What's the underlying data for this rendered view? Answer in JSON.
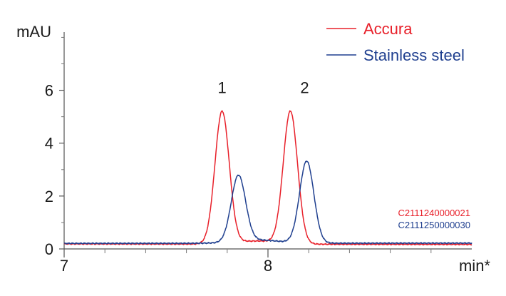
{
  "chart_data": {
    "type": "line",
    "ylabel": "mAU",
    "xlabel": "min*",
    "xlim": [
      7.0,
      9.0
    ],
    "ylim": [
      0,
      8.2
    ],
    "x_ticks": [
      {
        "value": 7.0,
        "label": "7"
      },
      {
        "value": 8.0,
        "label": "8"
      }
    ],
    "x_minor_ticks": [
      7.2,
      7.4,
      7.6,
      7.8,
      8.2,
      8.4,
      8.6,
      8.8
    ],
    "y_ticks": [
      {
        "value": 0,
        "label": "0"
      },
      {
        "value": 2,
        "label": "2"
      },
      {
        "value": 4,
        "label": "4"
      },
      {
        "value": 6,
        "label": "6"
      }
    ],
    "y_minor_ticks": [
      1,
      3,
      5,
      7,
      8
    ],
    "grid": false,
    "legend_position": "top-right",
    "series": [
      {
        "name": "Accura",
        "color": "#e8202a",
        "baseline": [
          [
            7.0,
            0.19
          ],
          [
            9.0,
            0.17
          ]
        ],
        "peaks": [
          {
            "center": 7.775,
            "height": 5.0,
            "sigma": 0.035
          },
          {
            "center": 8.11,
            "height": 5.0,
            "sigma": 0.035
          }
        ]
      },
      {
        "name": "Stainless steel",
        "color": "#1f3f8f",
        "baseline": [
          [
            7.0,
            0.21
          ],
          [
            9.0,
            0.22
          ]
        ],
        "peaks": [
          {
            "center": 7.855,
            "height": 2.5,
            "sigma": 0.035
          },
          {
            "center": 8.19,
            "height": 3.1,
            "sigma": 0.035
          }
        ]
      }
    ],
    "peak_annotations": [
      {
        "label": "1",
        "x": 7.775,
        "y": 5.9
      },
      {
        "label": "2",
        "x": 8.18,
        "y": 5.9
      }
    ],
    "sample_ids": [
      {
        "text": "C2111240000021",
        "color": "#e8202a"
      },
      {
        "text": "C2111250000030",
        "color": "#1f3f8f"
      }
    ]
  }
}
